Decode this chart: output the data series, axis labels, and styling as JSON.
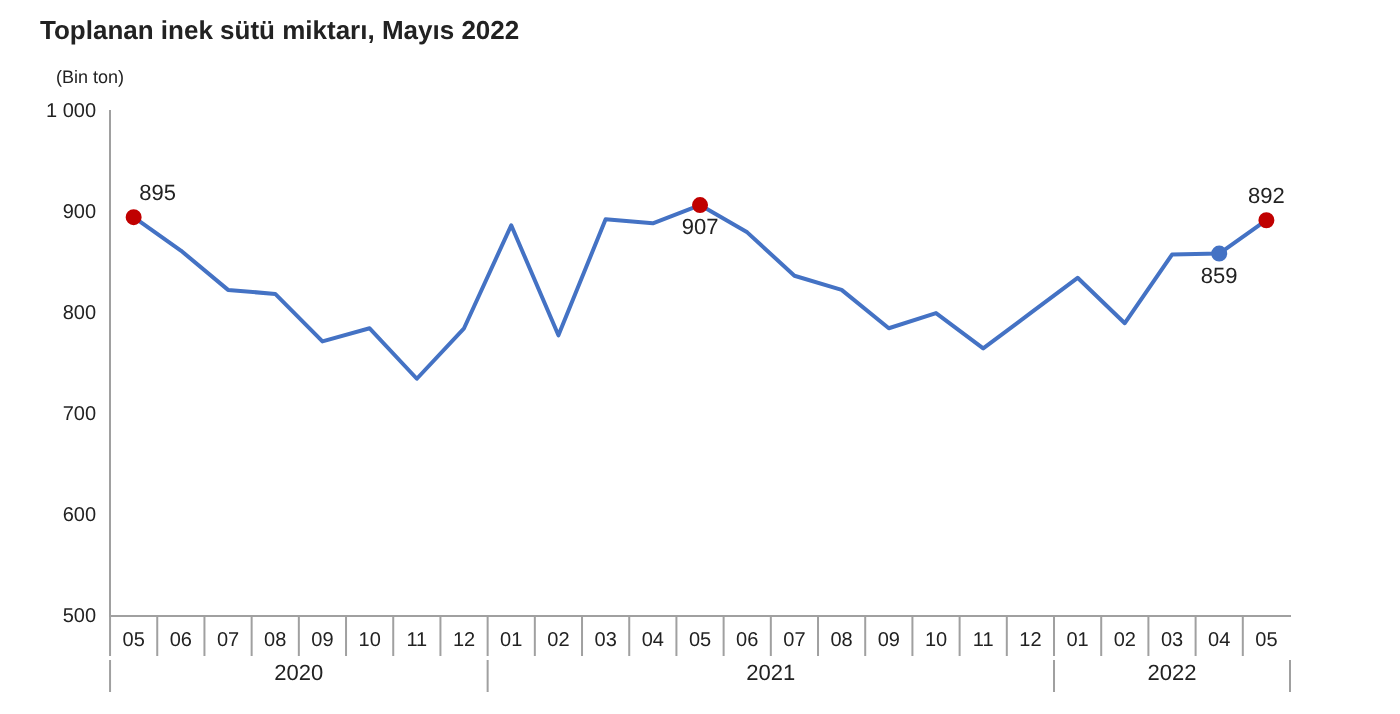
{
  "chart_data": {
    "type": "line",
    "title": "Toplanan inek sütü miktarı, Mayıs 2022",
    "ylabel": "(Bin ton)",
    "x": [
      "2020-05",
      "2020-06",
      "2020-07",
      "2020-08",
      "2020-09",
      "2020-10",
      "2020-11",
      "2020-12",
      "2021-01",
      "2021-02",
      "2021-03",
      "2021-04",
      "2021-05",
      "2021-06",
      "2021-07",
      "2021-08",
      "2021-09",
      "2021-10",
      "2021-11",
      "2021-12",
      "2022-01",
      "2022-02",
      "2022-03",
      "2022-04",
      "2022-05"
    ],
    "xlim": [
      "2020-04-16",
      "2022-05-16"
    ],
    "annotations": [
      "2020",
      "2021",
      "2022"
    ],
    "xticks": [
      {
        "value": "2020-05",
        "label": "05"
      },
      {
        "value": "2020-06",
        "label": "06"
      },
      {
        "value": "2020-07",
        "label": "07"
      },
      {
        "value": "2020-08",
        "label": "08"
      },
      {
        "value": "2020-09",
        "label": "09"
      },
      {
        "value": "2020-10",
        "label": "10"
      },
      {
        "value": "2020-11",
        "label": "11"
      },
      {
        "value": "2020-12",
        "label": "12"
      },
      {
        "value": "2021-01",
        "label": "01"
      },
      {
        "value": "2021-02",
        "label": "02"
      },
      {
        "value": "2021-03",
        "label": "03"
      },
      {
        "value": "2021-04",
        "label": "04"
      },
      {
        "value": "2021-05",
        "label": "05"
      },
      {
        "value": "2021-06",
        "label": "06"
      },
      {
        "value": "2021-07",
        "label": "07"
      },
      {
        "value": "2021-08",
        "label": "08"
      },
      {
        "value": "2021-09",
        "label": "09"
      },
      {
        "value": "2021-10",
        "label": "10"
      },
      {
        "value": "2021-11",
        "label": "11"
      },
      {
        "value": "2021-12",
        "label": "12"
      },
      {
        "value": "2022-01",
        "label": "01"
      },
      {
        "value": "2022-02",
        "label": "02"
      },
      {
        "value": "2022-03",
        "label": "03"
      },
      {
        "value": "2022-04",
        "label": "04"
      },
      {
        "value": "2022-05",
        "label": "05"
      }
    ],
    "ylim": [
      500,
      1000
    ],
    "yticks": [
      500,
      600,
      700,
      800,
      900,
      {
        "value": 1000,
        "label": "1 000"
      }
    ],
    "grid": false,
    "legend": false,
    "series": [
      {
        "color": "#4472c4",
        "values": [
          895,
          862,
          823,
          819,
          772,
          785,
          735,
          785,
          887,
          778,
          893,
          889,
          907,
          880,
          837,
          823,
          785,
          800,
          765,
          800,
          835,
          790,
          858,
          859,
          892
        ],
        "colors": [
          "#c00000",
          "#4472c4",
          "#4472c4",
          "#4472c4",
          "#4472c4",
          "#4472c4",
          "#4472c4",
          "#4472c4",
          "#4472c4",
          "#4472c4",
          "#4472c4",
          "#4472c4",
          "#c00000",
          "#4472c4",
          "#4472c4",
          "#4472c4",
          "#4472c4",
          "#4472c4",
          "#4472c4",
          "#4472c4",
          "#4472c4",
          "#4472c4",
          "#4472c4",
          "#4472c4",
          "#c00000"
        ],
        "value_labels": [
          "895",
          null,
          null,
          null,
          null,
          null,
          null,
          null,
          null,
          null,
          null,
          null,
          "907",
          null,
          null,
          null,
          null,
          null,
          null,
          null,
          null,
          null,
          null,
          "859",
          "892"
        ]
      }
    ]
  }
}
